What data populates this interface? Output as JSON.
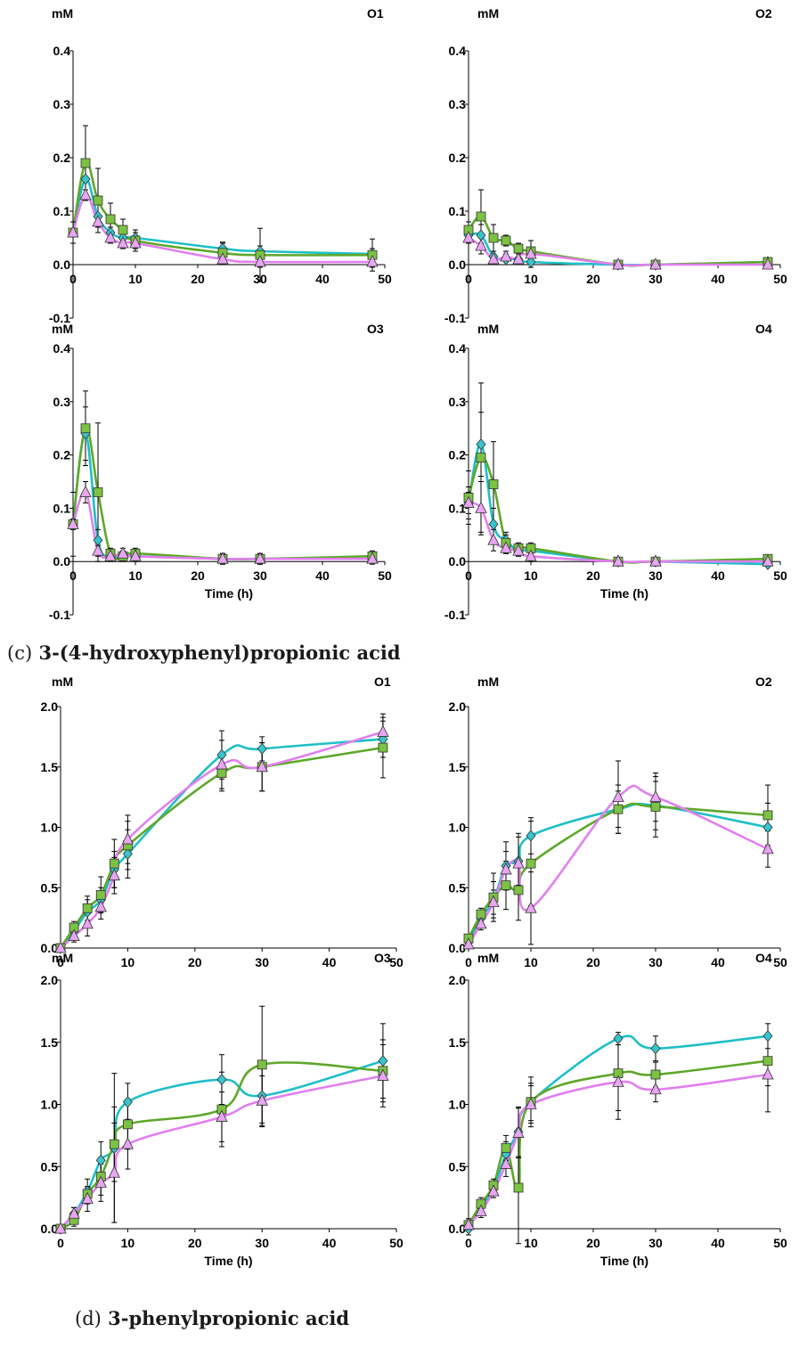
{
  "captions": {
    "c": {
      "num": "(c)",
      "text": "3-(4-hydroxyphenyl)propionic acid"
    },
    "d": {
      "num": "(d)",
      "text": "3-phenylpropionic acid"
    }
  },
  "colors": {
    "cyan": "#1fbfc7",
    "green": "#5ea82a",
    "violet": "#e27ff0",
    "marker_green": "#7bc143",
    "marker_violet": "#e8a6f2",
    "marker_cyan": "#38c4cc"
  },
  "chart_data": [
    {
      "type": "line",
      "title": "O1",
      "ylabel": "mM",
      "xlabel": "",
      "x": [
        0,
        2,
        4,
        6,
        8,
        10,
        24,
        30,
        48
      ],
      "xticks": [
        "0",
        "10",
        "20",
        "30",
        "40",
        "50"
      ],
      "yticks": [
        "-0.1",
        "0.0",
        "0.1",
        "0.2",
        "0.3",
        "0.4"
      ],
      "xlim": [
        0,
        50
      ],
      "ylim": [
        -0.1,
        0.4
      ],
      "series": [
        {
          "color": "cyan",
          "marker": "diamond",
          "values": [
            0.06,
            0.16,
            0.09,
            0.06,
            0.05,
            0.05,
            0.03,
            0.025,
            0.02
          ],
          "err": [
            0,
            0,
            0,
            0.01,
            0.01,
            0.01,
            0.01,
            0.01,
            0.01
          ]
        },
        {
          "color": "green",
          "marker": "square",
          "values": [
            0.06,
            0.19,
            0.12,
            0.085,
            0.065,
            0.045,
            0.022,
            0.018,
            0.018
          ],
          "err": [
            0.02,
            0.07,
            0.06,
            0.03,
            0.02,
            0.02,
            0.02,
            0.05,
            0.03
          ]
        },
        {
          "color": "violet",
          "marker": "triangle",
          "values": [
            0.06,
            0.13,
            0.08,
            0.05,
            0.04,
            0.04,
            0.01,
            0.005,
            0.005
          ],
          "err": [
            0,
            0.01,
            0.01,
            0.01,
            0.01,
            0.01,
            0.01,
            0.01,
            0.01
          ]
        }
      ]
    },
    {
      "type": "line",
      "title": "O2",
      "ylabel": "mM",
      "xlabel": "",
      "x": [
        0,
        2,
        4,
        6,
        8,
        10,
        24,
        30,
        48
      ],
      "xticks": [
        "0",
        "10",
        "20",
        "30",
        "40",
        "50"
      ],
      "yticks": [
        "-0.1",
        "0.0",
        "0.1",
        "0.2",
        "0.3",
        "0.4"
      ],
      "xlim": [
        0,
        50
      ],
      "ylim": [
        -0.1,
        0.4
      ],
      "series": [
        {
          "color": "cyan",
          "marker": "diamond",
          "values": [
            0.055,
            0.055,
            0.015,
            0.01,
            0.01,
            0.005,
            0.0,
            0.0,
            0.005
          ],
          "err": [
            0,
            0.02,
            0.01,
            0.01,
            0.01,
            0.01,
            0,
            0,
            0
          ]
        },
        {
          "color": "green",
          "marker": "square",
          "values": [
            0.065,
            0.09,
            0.05,
            0.045,
            0.03,
            0.025,
            0.0,
            0.0,
            0.005
          ],
          "err": [
            0.015,
            0.05,
            0.025,
            0.01,
            0.01,
            0.02,
            0,
            0,
            0
          ]
        },
        {
          "color": "violet",
          "marker": "triangle",
          "values": [
            0.05,
            0.035,
            0.01,
            0.015,
            0.01,
            0.02,
            0.0,
            0.0,
            0.0
          ],
          "err": [
            0.01,
            0.015,
            0.01,
            0.01,
            0.01,
            0.01,
            0,
            0,
            0
          ]
        }
      ]
    },
    {
      "type": "line",
      "title": "O3",
      "ylabel": "mM",
      "xlabel": "Time (h)",
      "x": [
        0,
        2,
        4,
        6,
        8,
        10,
        24,
        30,
        48
      ],
      "xticks": [
        "0",
        "10",
        "20",
        "30",
        "40",
        "50"
      ],
      "yticks": [
        "-0.1",
        "0.0",
        "0.1",
        "0.2",
        "0.3",
        "0.4"
      ],
      "xlim": [
        0,
        50
      ],
      "ylim": [
        -0.1,
        0.4
      ],
      "series": [
        {
          "color": "cyan",
          "marker": "diamond",
          "values": [
            0.07,
            0.24,
            0.04,
            0.01,
            0.01,
            0.01,
            0.005,
            0.005,
            0.005
          ],
          "err": [
            0,
            0.05,
            0.02,
            0,
            0,
            0,
            0,
            0,
            0
          ]
        },
        {
          "color": "green",
          "marker": "square",
          "values": [
            0.07,
            0.25,
            0.13,
            0.015,
            0.01,
            0.015,
            0.005,
            0.005,
            0.01
          ],
          "err": [
            0.06,
            0.07,
            0.13,
            0.01,
            0.01,
            0.01,
            0.01,
            0.01,
            0.01
          ]
        },
        {
          "color": "violet",
          "marker": "triangle",
          "values": [
            0.07,
            0.13,
            0.02,
            0.01,
            0.015,
            0.01,
            0.005,
            0.005,
            0.005
          ],
          "err": [
            0.01,
            0.02,
            0.01,
            0.01,
            0.01,
            0.01,
            0.01,
            0.01,
            0.01
          ]
        }
      ]
    },
    {
      "type": "line",
      "title": "O4",
      "ylabel": "mM",
      "xlabel": "Time (h)",
      "x": [
        0,
        2,
        4,
        6,
        8,
        10,
        24,
        30,
        48
      ],
      "xticks": [
        "0",
        "10",
        "20",
        "30",
        "40",
        "50"
      ],
      "yticks": [
        "-0.1",
        "0.0",
        "0.1",
        "0.2",
        "0.3",
        "0.4"
      ],
      "xlim": [
        0,
        50
      ],
      "ylim": [
        -0.1,
        0.4
      ],
      "series": [
        {
          "color": "cyan",
          "marker": "diamond",
          "values": [
            0.11,
            0.22,
            0.07,
            0.04,
            0.02,
            0.02,
            0.0,
            0.0,
            -0.005
          ],
          "err": [
            0.03,
            0.06,
            0.03,
            0.01,
            0.01,
            0.01,
            0,
            0,
            0
          ]
        },
        {
          "color": "green",
          "marker": "square",
          "values": [
            0.12,
            0.195,
            0.145,
            0.035,
            0.025,
            0.025,
            0.0,
            0.0,
            0.005
          ],
          "err": [
            0.05,
            0.14,
            0.08,
            0.02,
            0.01,
            0.01,
            0.005,
            0.005,
            0.005
          ]
        },
        {
          "color": "violet",
          "marker": "triangle",
          "values": [
            0.11,
            0.1,
            0.04,
            0.025,
            0.02,
            0.01,
            0.0,
            0.0,
            0.0
          ],
          "err": [
            0.02,
            0.05,
            0.02,
            0.01,
            0.01,
            0.01,
            0,
            0,
            0
          ]
        }
      ]
    },
    {
      "type": "line",
      "title": "O1",
      "ylabel": "mM",
      "xlabel": "",
      "x": [
        0,
        2,
        4,
        6,
        8,
        10,
        24,
        30,
        48
      ],
      "xticks": [
        "0",
        "10",
        "20",
        "30",
        "40",
        "50"
      ],
      "yticks": [
        "0.0",
        "0.5",
        "1.0",
        "1.5",
        "2.0"
      ],
      "xlim": [
        0,
        50
      ],
      "ylim": [
        0,
        2.0
      ],
      "series": [
        {
          "color": "cyan",
          "marker": "diamond",
          "values": [
            0.0,
            0.14,
            0.3,
            0.4,
            0.65,
            0.78,
            1.6,
            1.65,
            1.73
          ],
          "err": [
            0.01,
            0.05,
            0.1,
            0.1,
            0.15,
            0.2,
            0.2,
            0.1,
            0.15
          ]
        },
        {
          "color": "green",
          "marker": "square",
          "values": [
            0.0,
            0.17,
            0.33,
            0.44,
            0.7,
            0.85,
            1.45,
            1.5,
            1.66
          ],
          "err": [
            0.01,
            0.05,
            0.1,
            0.15,
            0.2,
            0.2,
            0.15,
            0.2,
            0.25
          ]
        },
        {
          "color": "violet",
          "marker": "triangle",
          "values": [
            0.0,
            0.1,
            0.2,
            0.34,
            0.6,
            0.9,
            1.52,
            1.5,
            1.79
          ],
          "err": [
            0.01,
            0.05,
            0.1,
            0.1,
            0.15,
            0.2,
            0.2,
            0.2,
            0.15
          ]
        }
      ]
    },
    {
      "type": "line",
      "title": "O2",
      "ylabel": "mM",
      "xlabel": "",
      "x": [
        0,
        2,
        4,
        6,
        8,
        10,
        24,
        30,
        48
      ],
      "xticks": [
        "0",
        "10",
        "20",
        "30",
        "40",
        "50"
      ],
      "yticks": [
        "0.0",
        "0.5",
        "1.0",
        "1.5",
        "2.0"
      ],
      "xlim": [
        0,
        50
      ],
      "ylim": [
        0,
        2.0
      ],
      "series": [
        {
          "color": "cyan",
          "marker": "diamond",
          "values": [
            0.05,
            0.25,
            0.4,
            0.68,
            0.72,
            0.93,
            1.15,
            1.18,
            1.0
          ],
          "err": [
            0.02,
            0.05,
            0.15,
            0.2,
            0.2,
            0.15,
            0.15,
            0.2,
            0.2
          ]
        },
        {
          "color": "green",
          "marker": "square",
          "values": [
            0.08,
            0.28,
            0.42,
            0.52,
            0.48,
            0.7,
            1.15,
            1.17,
            1.1
          ],
          "err": [
            0.02,
            0.05,
            0.2,
            0.2,
            0.25,
            0.35,
            0.2,
            0.25,
            0.25
          ]
        },
        {
          "color": "violet",
          "marker": "triangle",
          "values": [
            0.03,
            0.2,
            0.38,
            0.65,
            0.7,
            0.33,
            1.25,
            1.25,
            0.82
          ],
          "err": [
            0.01,
            0.05,
            0.1,
            0.15,
            0.25,
            0.3,
            0.3,
            0.2,
            0.15
          ]
        }
      ]
    },
    {
      "type": "line",
      "title": "O3",
      "ylabel": "mM",
      "xlabel": "Time (h)",
      "x": [
        0,
        2,
        4,
        6,
        8,
        10,
        24,
        30,
        48
      ],
      "xticks": [
        "0",
        "10",
        "20",
        "30",
        "40",
        "50"
      ],
      "yticks": [
        "0.0",
        "0.5",
        "1.0",
        "1.5",
        "2.0"
      ],
      "xlim": [
        0,
        50
      ],
      "ylim": [
        0,
        2.0
      ],
      "series": [
        {
          "color": "cyan",
          "marker": "diamond",
          "values": [
            0.0,
            0.12,
            0.3,
            0.55,
            0.65,
            1.02,
            1.2,
            1.07,
            1.35
          ],
          "err": [
            0.01,
            0.05,
            0.1,
            0.15,
            0.6,
            0.15,
            0.2,
            0.25,
            0.3
          ]
        },
        {
          "color": "green",
          "marker": "square",
          "values": [
            0.0,
            0.07,
            0.28,
            0.42,
            0.68,
            0.84,
            0.96,
            1.32,
            1.27
          ],
          "err": [
            0.01,
            0.05,
            0.05,
            0.15,
            0.3,
            0.2,
            0.3,
            0.47,
            0.25
          ]
        },
        {
          "color": "violet",
          "marker": "triangle",
          "values": [
            0.0,
            0.12,
            0.24,
            0.37,
            0.45,
            0.68,
            0.9,
            1.03,
            1.23
          ],
          "err": [
            0.01,
            0.05,
            0.1,
            0.15,
            0.4,
            0.2,
            0.2,
            0.2,
            0.25
          ]
        }
      ]
    },
    {
      "type": "line",
      "title": "O4",
      "ylabel": "mM",
      "xlabel": "Time (h)",
      "x": [
        0,
        2,
        4,
        6,
        8,
        10,
        24,
        30,
        48
      ],
      "xticks": [
        "0",
        "10",
        "20",
        "30",
        "40",
        "50"
      ],
      "yticks": [
        "0.0",
        "0.5",
        "1.0",
        "1.5",
        "2.0"
      ],
      "xlim": [
        0,
        50
      ],
      "ylim": [
        0,
        2.0
      ],
      "series": [
        {
          "color": "cyan",
          "marker": "diamond",
          "values": [
            0.0,
            0.18,
            0.32,
            0.6,
            0.78,
            1.02,
            1.53,
            1.45,
            1.55
          ],
          "err": [
            0.05,
            0.05,
            0.05,
            0.1,
            0.2,
            0.15,
            0.05,
            0.1,
            0.1
          ]
        },
        {
          "color": "green",
          "marker": "square",
          "values": [
            0.03,
            0.2,
            0.35,
            0.65,
            0.33,
            1.02,
            1.25,
            1.24,
            1.35
          ],
          "err": [
            0.05,
            0.05,
            0.05,
            0.1,
            0.45,
            0.2,
            0.3,
            0.1,
            0.2
          ]
        },
        {
          "color": "violet",
          "marker": "triangle",
          "values": [
            0.03,
            0.14,
            0.3,
            0.52,
            0.77,
            1.0,
            1.18,
            1.12,
            1.24
          ],
          "err": [
            0.05,
            0.05,
            0.05,
            0.1,
            0.2,
            0.15,
            0.3,
            0.1,
            0.3
          ]
        }
      ]
    }
  ]
}
